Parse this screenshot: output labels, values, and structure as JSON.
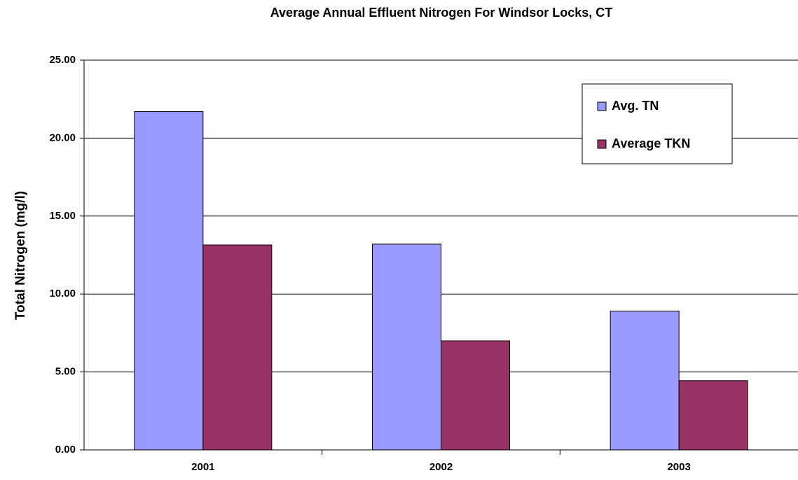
{
  "chart_data": {
    "type": "bar",
    "title": "Average Annual Effluent Nitrogen For Windsor Locks, CT",
    "y_label": "Total Nitrogen (mg/l)",
    "categories": [
      "2001",
      "2002",
      "2003"
    ],
    "series": [
      {
        "name": "Avg. TN",
        "color": "#9999ff",
        "values": [
          21.7,
          13.2,
          8.9
        ]
      },
      {
        "name": "Average TKN",
        "color": "#993366",
        "values": [
          13.15,
          7.0,
          4.45
        ]
      }
    ],
    "ylim": [
      0,
      25
    ],
    "yticks": [
      {
        "value": 0,
        "label": "0.00"
      },
      {
        "value": 5,
        "label": "5.00"
      },
      {
        "value": 10,
        "label": "10.00"
      },
      {
        "value": 15,
        "label": "15.00"
      },
      {
        "value": 20,
        "label": "20.00"
      },
      {
        "value": 25,
        "label": "25.00"
      }
    ],
    "grid": true,
    "legend": "upper right"
  }
}
